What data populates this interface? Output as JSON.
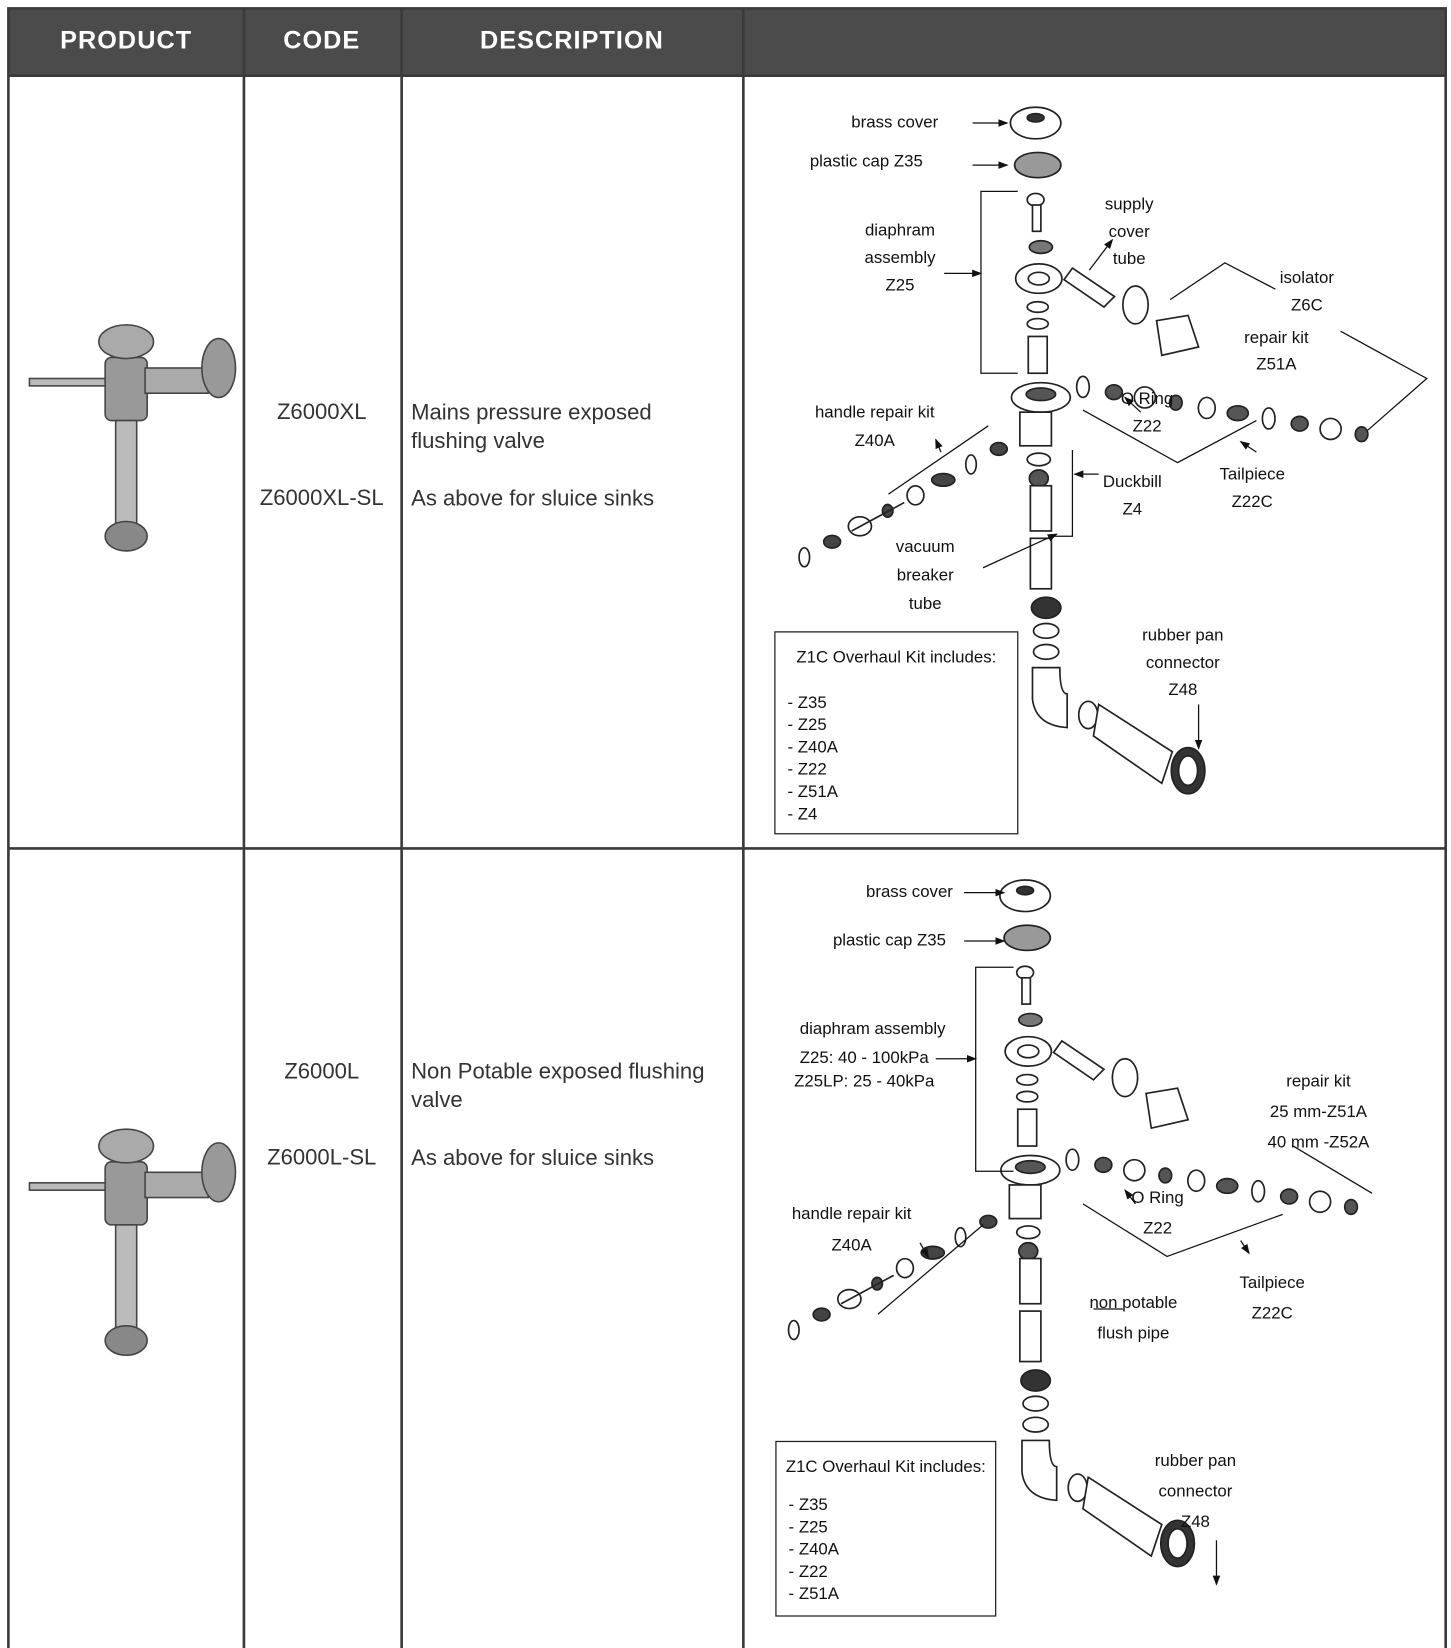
{
  "table": {
    "headers": [
      "PRODUCT",
      "CODE",
      "DESCRIPTION"
    ],
    "rows": [
      {
        "codes": [
          "Z6000XL",
          "Z6000XL-SL"
        ],
        "descriptions": [
          "Mains pressure exposed flushing valve",
          "As above for sluice sinks"
        ],
        "diagram": {
          "labels": [
            [
              "brass cover"
            ],
            [
              "plastic cap Z35"
            ],
            [
              "diaphram",
              "assembly",
              "Z25"
            ],
            [
              "supply",
              "cover",
              "tube"
            ],
            [
              "isolator",
              "Z6C"
            ],
            [
              "repair kit",
              "Z51A"
            ],
            [
              "O Ring",
              "Z22"
            ],
            [
              "handle repair kit",
              "Z40A"
            ],
            [
              "Tailpiece",
              "Z22C"
            ],
            [
              "Duckbill",
              "Z4"
            ],
            [
              "vacuum",
              "breaker",
              "tube"
            ],
            [
              "rubber pan",
              "connector",
              "Z48"
            ]
          ],
          "kit": {
            "title": "Z1C Overhaul Kit includes:",
            "items": [
              "- Z35",
              "- Z25",
              "- Z40A",
              "- Z22",
              "- Z51A",
              "- Z4"
            ]
          }
        }
      },
      {
        "codes": [
          "Z6000L",
          "Z6000L-SL"
        ],
        "descriptions": [
          "Non Potable exposed flushing valve",
          "As above for sluice sinks"
        ],
        "diagram": {
          "labels": [
            [
              "brass cover"
            ],
            [
              "plastic cap Z35"
            ],
            [
              "diaphram assembly"
            ],
            [
              "Z25: 40 - 100kPa",
              "Z25LP: 25 - 40kPa"
            ],
            [
              "repair kit",
              "25 mm-Z51A",
              "40 mm -Z52A"
            ],
            [
              "O Ring",
              "Z22"
            ],
            [
              "handle repair kit",
              "Z40A"
            ],
            [
              "Tailpiece",
              "Z22C"
            ],
            [
              "non potable",
              "flush pipe"
            ],
            [
              "rubber pan",
              "connector",
              "Z48"
            ]
          ],
          "kit": {
            "title": "Z1C Overhaul Kit includes:",
            "items": [
              "- Z35",
              "- Z25",
              "- Z40A",
              "- Z22",
              "- Z51A"
            ]
          }
        }
      }
    ]
  }
}
